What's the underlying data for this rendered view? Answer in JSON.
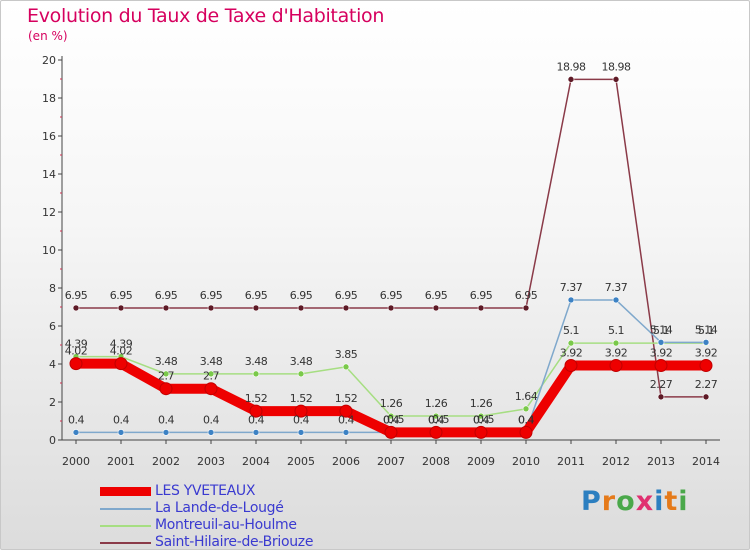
{
  "title": "Evolution du Taux de Taxe d'Habitation",
  "unit_label": "(en %)",
  "logo": {
    "letters": [
      "P",
      "r",
      "o",
      "x",
      "i",
      "t",
      "i"
    ],
    "colors": [
      "#2c7fc0",
      "#e57a1a",
      "#4aa84a",
      "#e03070",
      "#2c7fc0",
      "#e57a1a",
      "#4aa84a"
    ]
  },
  "chart_data": {
    "type": "line",
    "title": "Evolution du Taux de Taxe d'Habitation",
    "ylabel": "(en %)",
    "xlabel": "",
    "x": [
      "2000",
      "2001",
      "2002",
      "2003",
      "2004",
      "2005",
      "2006",
      "2007",
      "2008",
      "2009",
      "2010",
      "2011",
      "2012",
      "2013",
      "2014"
    ],
    "ylim": [
      0,
      20
    ],
    "yticks": [
      "0",
      "2",
      "4",
      "6",
      "8",
      "10",
      "12",
      "14",
      "16",
      "18",
      "20"
    ],
    "grid": false,
    "legend_position": "bottom-left",
    "series": [
      {
        "name": "LES YVETEAUX",
        "color": "#ee0000",
        "marker": "#ee0000",
        "values": [
          4.02,
          4.02,
          2.7,
          2.7,
          1.52,
          1.52,
          1.52,
          0.4,
          0.4,
          0.4,
          0.4,
          3.92,
          3.92,
          3.92,
          3.92
        ],
        "labels": [
          "4.02",
          "4.02",
          "2.7",
          "2.7",
          "1.52",
          "1.52",
          "1.52",
          "0.4",
          "0.4",
          "0.4",
          "0.4",
          "3.92",
          "3.92",
          "3.92",
          "3.92"
        ]
      },
      {
        "name": "La Lande-de-Lougé",
        "color": "#7fa8cc",
        "marker": "#3d82c4",
        "values": [
          0.4,
          0.4,
          0.4,
          0.4,
          0.4,
          0.4,
          0.4,
          0.4,
          0.4,
          0.4,
          0.4,
          7.37,
          7.37,
          5.14,
          5.14
        ],
        "labels": [
          "0.4",
          "0.4",
          "0.4",
          "0.4",
          "0.4",
          "0.4",
          "0.4",
          "0.4",
          "0.4",
          "0.4",
          "0.4",
          "7.37",
          "7.37",
          "5.14",
          "5.14"
        ]
      },
      {
        "name": "Montreuil-au-Houlme",
        "color": "#a6de82",
        "marker": "#7ac94a",
        "values": [
          4.39,
          4.39,
          3.48,
          3.48,
          3.48,
          3.48,
          3.85,
          1.26,
          1.26,
          1.26,
          1.64,
          5.1,
          5.1,
          5.1,
          5.1
        ],
        "labels": [
          "4.39",
          "4.39",
          "3.48",
          "3.48",
          "3.48",
          "3.48",
          "3.85",
          "1.26",
          "1.26",
          "1.26",
          "1.64",
          "5.1",
          "5.1",
          "5.1",
          "5.1"
        ]
      },
      {
        "name": "Saint-Hilaire-de-Briouze",
        "color": "#8a3a48",
        "marker": "#5e1a26",
        "values": [
          6.95,
          6.95,
          6.95,
          6.95,
          6.95,
          6.95,
          6.95,
          6.95,
          6.95,
          6.95,
          6.95,
          18.98,
          18.98,
          2.27,
          2.27
        ],
        "labels": [
          "6.95",
          "6.95",
          "6.95",
          "6.95",
          "6.95",
          "6.95",
          "6.95",
          "6.95",
          "6.95",
          "6.95",
          "6.95",
          "18.98",
          "18.98",
          "2.27",
          "2.27"
        ]
      }
    ],
    "annotations": [
      "0.5"
    ]
  }
}
